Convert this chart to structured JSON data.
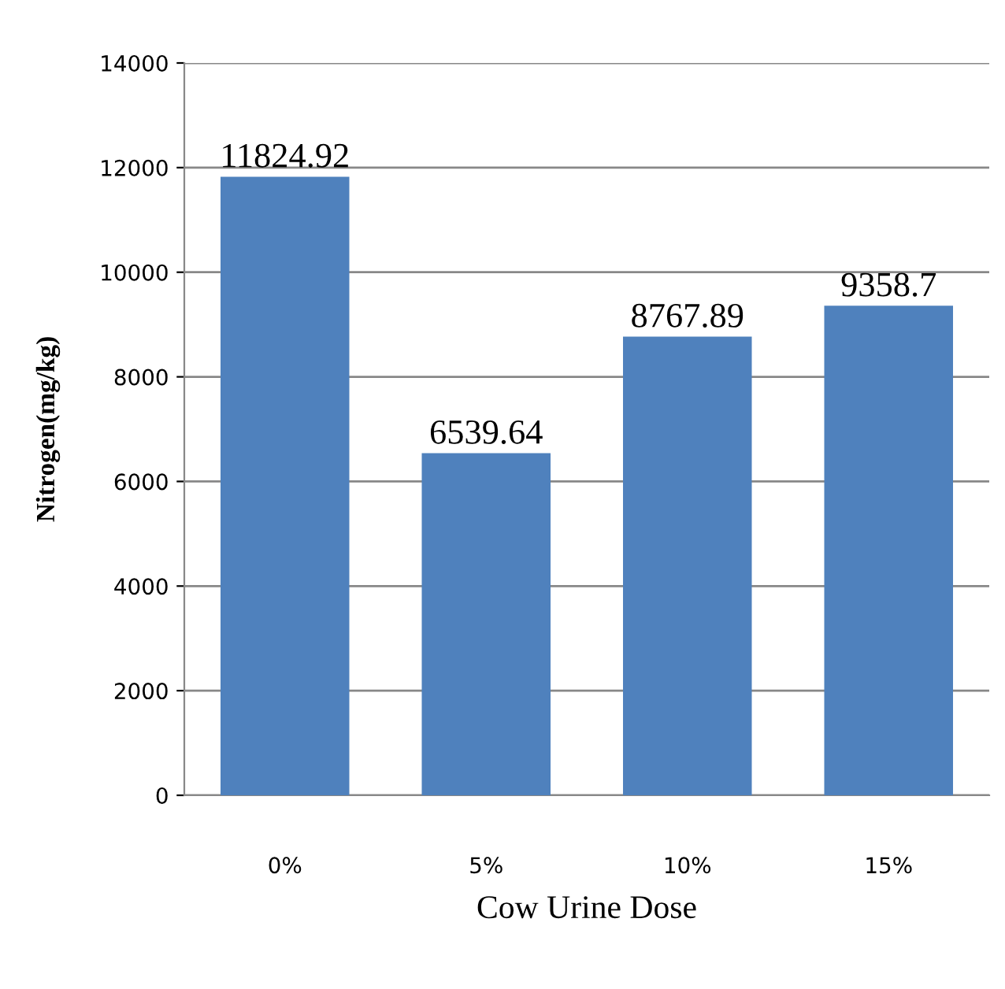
{
  "chart_data": {
    "type": "bar",
    "xlabel": "Cow Urine Dose",
    "ylabel": "Nitrogen(mg/kg)",
    "categories": [
      "0%",
      "5%",
      "10%",
      "15%"
    ],
    "values": [
      11824.92,
      6539.64,
      8767.89,
      9358.7
    ],
    "color": "#4f81bd",
    "value_labels": [
      "11824.92",
      "6539.64",
      "8767.89",
      "9358.7"
    ],
    "ylim": [
      0,
      14000
    ],
    "yticks": [
      0,
      2000,
      4000,
      6000,
      8000,
      10000,
      12000,
      14000
    ],
    "grid": "y"
  }
}
